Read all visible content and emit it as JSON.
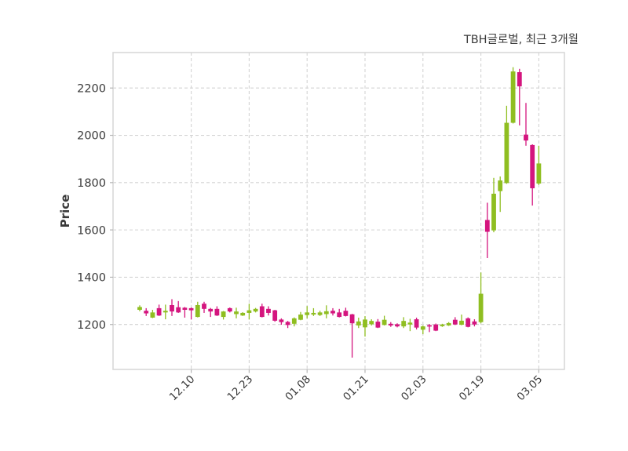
{
  "figure": {
    "title": "TBH글로벌, 최근 3개월"
  },
  "chart_data": {
    "type": "candlestick",
    "title": "TBH글로벌, 최근 3개월",
    "xlabel": "",
    "ylabel": "Price",
    "grid": true,
    "legend": "none",
    "ylim": [
      1010,
      2350
    ],
    "y_ticks": [
      1200,
      1400,
      1600,
      1800,
      2000,
      2200
    ],
    "x_ticks": [
      {
        "index": 8,
        "label": "12.10"
      },
      {
        "index": 17,
        "label": "12.23"
      },
      {
        "index": 26,
        "label": "01.08"
      },
      {
        "index": 35,
        "label": "01.21"
      },
      {
        "index": 44,
        "label": "02.03"
      },
      {
        "index": 53,
        "label": "02.19"
      },
      {
        "index": 62,
        "label": "03.05"
      }
    ],
    "colors": {
      "up": "#8fbe21",
      "down": "#d4157e",
      "grid": "#d3d3d3",
      "spine": "#d8d8d8",
      "text": "#3a3a3a"
    },
    "candle_columns": [
      "open",
      "high",
      "low",
      "close"
    ],
    "candles": [
      [
        1262,
        1281,
        1256,
        1274
      ],
      [
        1258,
        1269,
        1236,
        1247
      ],
      [
        1229,
        1262,
        1227,
        1251
      ],
      [
        1269,
        1284,
        1236,
        1238
      ],
      [
        1251,
        1284,
        1222,
        1258
      ],
      [
        1282,
        1307,
        1236,
        1255
      ],
      [
        1273,
        1299,
        1249,
        1251
      ],
      [
        1271,
        1274,
        1229,
        1262
      ],
      [
        1269,
        1272,
        1221,
        1260
      ],
      [
        1232,
        1296,
        1230,
        1282
      ],
      [
        1288,
        1296,
        1249,
        1266
      ],
      [
        1266,
        1270,
        1232,
        1255
      ],
      [
        1266,
        1277,
        1236,
        1238
      ],
      [
        1232,
        1257,
        1221,
        1255
      ],
      [
        1269,
        1272,
        1251,
        1255
      ],
      [
        1244,
        1271,
        1226,
        1255
      ],
      [
        1238,
        1252,
        1236,
        1249
      ],
      [
        1249,
        1288,
        1221,
        1260
      ],
      [
        1255,
        1270,
        1251,
        1266
      ],
      [
        1277,
        1288,
        1230,
        1232
      ],
      [
        1266,
        1277,
        1238,
        1249
      ],
      [
        1260,
        1262,
        1212,
        1216
      ],
      [
        1221,
        1226,
        1199,
        1210
      ],
      [
        1211,
        1215,
        1185,
        1198
      ],
      [
        1203,
        1230,
        1192,
        1226
      ],
      [
        1220,
        1253,
        1218,
        1242
      ],
      [
        1240,
        1278,
        1226,
        1251
      ],
      [
        1242,
        1269,
        1236,
        1249
      ],
      [
        1240,
        1258,
        1236,
        1251
      ],
      [
        1244,
        1281,
        1226,
        1256
      ],
      [
        1258,
        1269,
        1238,
        1247
      ],
      [
        1251,
        1266,
        1230,
        1232
      ],
      [
        1258,
        1271,
        1234,
        1236
      ],
      [
        1243,
        1245,
        1060,
        1205
      ],
      [
        1196,
        1229,
        1185,
        1213
      ],
      [
        1188,
        1235,
        1149,
        1221
      ],
      [
        1201,
        1222,
        1196,
        1215
      ],
      [
        1212,
        1223,
        1185,
        1187
      ],
      [
        1198,
        1237,
        1196,
        1220
      ],
      [
        1203,
        1210,
        1190,
        1196
      ],
      [
        1201,
        1205,
        1188,
        1192
      ],
      [
        1192,
        1231,
        1185,
        1215
      ],
      [
        1200,
        1224,
        1172,
        1208
      ],
      [
        1222,
        1229,
        1179,
        1187
      ],
      [
        1178,
        1196,
        1159,
        1192
      ],
      [
        1197,
        1202,
        1168,
        1192
      ],
      [
        1200,
        1204,
        1172,
        1174
      ],
      [
        1193,
        1203,
        1190,
        1200
      ],
      [
        1196,
        1210,
        1194,
        1206
      ],
      [
        1220,
        1231,
        1198,
        1200
      ],
      [
        1199,
        1242,
        1197,
        1216
      ],
      [
        1226,
        1230,
        1188,
        1190
      ],
      [
        1213,
        1222,
        1192,
        1200
      ],
      [
        1210,
        1420,
        1205,
        1330
      ],
      [
        1642,
        1715,
        1481,
        1592
      ],
      [
        1598,
        1820,
        1590,
        1753
      ],
      [
        1764,
        1826,
        1676,
        1809
      ],
      [
        1798,
        2125,
        1795,
        2053
      ],
      [
        2053,
        2288,
        2050,
        2270
      ],
      [
        2267,
        2281,
        2042,
        2207
      ],
      [
        2003,
        2137,
        1956,
        1978
      ],
      [
        1959,
        1962,
        1703,
        1776
      ],
      [
        1796,
        1956,
        1790,
        1881
      ]
    ]
  }
}
